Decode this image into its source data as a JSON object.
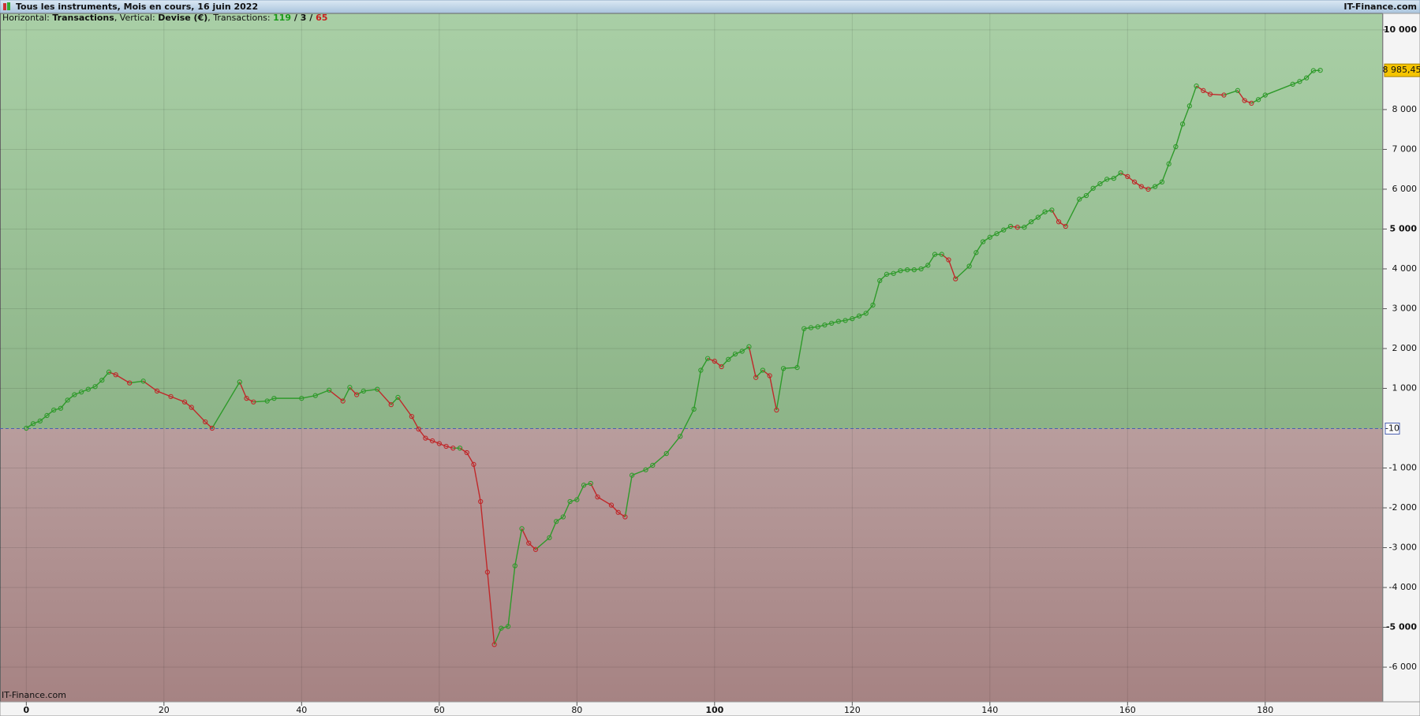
{
  "chart_data": {
    "type": "line",
    "title": "Tous les instruments, Mois en cours, 16 juin 2022",
    "brand": "IT-Finance.com",
    "watermark": "IT-Finance.com",
    "subtitle_parts": [
      "Horizontal: ",
      "Transactions",
      ", Vertical: ",
      "Devise (€)",
      ", Transactions: "
    ],
    "transaction_counts": [
      {
        "value": 119,
        "color": "#1a9a1a"
      },
      {
        "value": 3,
        "color": "#111111"
      },
      {
        "value": 65,
        "color": "#c81e1e"
      }
    ],
    "count_separator": " / ",
    "up_color": "#2e9a2a",
    "down_color": "#c0282a",
    "above_colors": [
      "#a9cfa6",
      "#8db488"
    ],
    "below_colors": [
      "#b89d9d",
      "#a68383"
    ],
    "x": [
      0,
      1,
      2,
      3,
      4,
      5,
      6,
      7,
      8,
      9,
      10,
      11,
      12,
      13,
      15,
      17,
      19,
      21,
      23,
      24,
      26,
      27,
      31,
      32,
      33,
      35,
      36,
      40,
      42,
      44,
      46,
      47,
      48,
      49,
      51,
      53,
      54,
      56,
      57,
      58,
      59,
      60,
      61,
      62,
      63,
      64,
      65,
      66,
      67,
      68,
      69,
      70,
      71,
      72,
      73,
      74,
      76,
      77,
      78,
      79,
      80,
      81,
      82,
      83,
      85,
      86,
      87,
      88,
      90,
      91,
      93,
      95,
      97,
      98,
      99,
      100,
      101,
      102,
      103,
      104,
      105,
      106,
      107,
      108,
      109,
      110,
      112,
      113,
      114,
      115,
      116,
      117,
      118,
      119,
      120,
      121,
      122,
      123,
      124,
      125,
      126,
      127,
      128,
      129,
      130,
      131,
      132,
      133,
      134,
      135,
      137,
      138,
      139,
      140,
      141,
      142,
      143,
      144,
      145,
      146,
      147,
      148,
      149,
      150,
      151,
      153,
      154,
      155,
      156,
      157,
      158,
      159,
      160,
      161,
      162,
      163,
      164,
      165,
      166,
      167,
      168,
      169,
      170,
      171,
      172,
      174,
      176,
      177,
      178,
      179,
      180,
      184,
      185,
      186,
      187,
      188
    ],
    "values": [
      0,
      114,
      180,
      318,
      455,
      500,
      705,
      841,
      909,
      977,
      1045,
      1205,
      1409,
      1341,
      1136,
      1182,
      932,
      795,
      659,
      523,
      159,
      0,
      1159,
      750,
      659,
      682,
      750,
      750,
      818,
      955,
      682,
      1023,
      841,
      932,
      977,
      591,
      773,
      295,
      -23,
      -250,
      -318,
      -386,
      -455,
      -500,
      -500,
      -614,
      -909,
      -1841,
      -3614,
      -5432,
      -5023,
      -4977,
      -3455,
      -2523,
      -2886,
      -3045,
      -2750,
      -2341,
      -2227,
      -1841,
      -1795,
      -1432,
      -1386,
      -1727,
      -1932,
      -2114,
      -2227,
      -1182,
      -1045,
      -932,
      -636,
      -205,
      477,
      1455,
      1750,
      1682,
      1545,
      1727,
      1864,
      1932,
      2045,
      1273,
      1455,
      1318,
      455,
      1500,
      1523,
      2500,
      2523,
      2545,
      2591,
      2636,
      2682,
      2705,
      2750,
      2818,
      2886,
      3091,
      3705,
      3864,
      3886,
      3955,
      3977,
      3977,
      4000,
      4091,
      4364,
      4364,
      4227,
      3750,
      4068,
      4409,
      4682,
      4795,
      4886,
      4977,
      5068,
      5045,
      5045,
      5182,
      5295,
      5432,
      5477,
      5182,
      5068,
      5750,
      5841,
      6023,
      6136,
      6250,
      6273,
      6409,
      6318,
      6182,
      6068,
      6000,
      6068,
      6182,
      6636,
      7068,
      7636,
      8091,
      8591,
      8477,
      8386,
      8364,
      8477,
      8227,
      8159,
      8250,
      8364,
      8636,
      8705,
      8795,
      8977,
      8985.45
    ],
    "last_value": {
      "value": 8985.45,
      "label": "8 985,45"
    },
    "reference_line": {
      "value": -10,
      "label": "-10"
    },
    "xlim": [
      -3.82,
      197.1
    ],
    "xticks": [
      0,
      20,
      40,
      60,
      80,
      100,
      120,
      140,
      160,
      180
    ],
    "bold_xticks": [
      0,
      100
    ],
    "ylim": [
      -6870,
      10414
    ],
    "yticks": [
      {
        "value": 10000,
        "label": "10 000"
      },
      {
        "value": 8000,
        "label": "8 000"
      },
      {
        "value": 7000,
        "label": "7 000"
      },
      {
        "value": 6000,
        "label": "6 000"
      },
      {
        "value": 5000,
        "label": "5 000"
      },
      {
        "value": 4000,
        "label": "4 000"
      },
      {
        "value": 3000,
        "label": "3 000"
      },
      {
        "value": 2000,
        "label": "2 000"
      },
      {
        "value": 1000,
        "label": "1 000"
      },
      {
        "value": -1000,
        "label": "-1 000"
      },
      {
        "value": -2000,
        "label": "-2 000"
      },
      {
        "value": -3000,
        "label": "-3 000"
      },
      {
        "value": -4000,
        "label": "-4 000"
      },
      {
        "value": -5000,
        "label": "-5 000"
      },
      {
        "value": -6000,
        "label": "-6 000"
      }
    ],
    "bold_yticks": [
      10000,
      5000,
      -5000
    ],
    "grid": true
  }
}
